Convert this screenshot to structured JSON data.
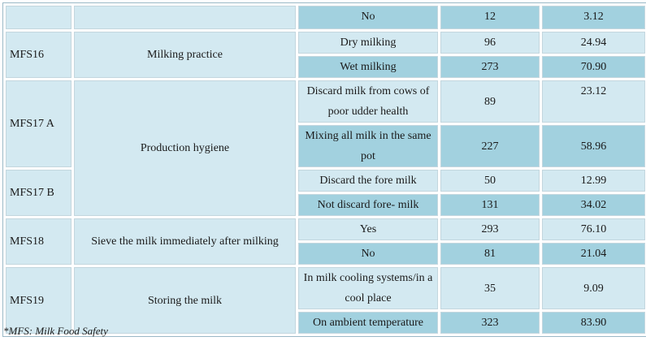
{
  "rows": {
    "r0": {
      "code": "",
      "factor": "",
      "option": "No",
      "n": "12",
      "pct": "3.12"
    },
    "r1": {
      "code": "MFS16",
      "factor": "Milking practice",
      "option": "Dry milking",
      "n": "96",
      "pct": "24.94"
    },
    "r2": {
      "option": "Wet milking",
      "n": "273",
      "pct": "70.90"
    },
    "r3": {
      "code": "MFS17 A",
      "factor": "Production hygiene",
      "option": "Discard milk from cows of poor udder health",
      "n": "89",
      "pct": "23.12"
    },
    "r4": {
      "option": "Mixing all milk in the same pot",
      "n": "227",
      "pct": "58.96"
    },
    "r5": {
      "code": "MFS17 B",
      "option": "Discard the fore milk",
      "n": "50",
      "pct": "12.99"
    },
    "r6": {
      "option": "Not discard fore- milk",
      "n": "131",
      "pct": "34.02"
    },
    "r7": {
      "code": "MFS18",
      "factor": "Sieve the milk immediately after milking",
      "option": "Yes",
      "n": "293",
      "pct": "76.10"
    },
    "r8": {
      "option": "No",
      "n": "81",
      "pct": "21.04"
    },
    "r9": {
      "code": "MFS19",
      "factor": "Storing the milk",
      "option": "In milk cooling systems/in a cool place",
      "n": "35",
      "pct": "9.09"
    },
    "r10": {
      "option": "On ambient temperature",
      "n": "323",
      "pct": "83.90"
    }
  },
  "footnote": "*MFS: Milk Food Safety",
  "colors": {
    "light_cell": "#d3e9f1",
    "dark_cell": "#a2d1df",
    "border": "#9ab8c6"
  }
}
